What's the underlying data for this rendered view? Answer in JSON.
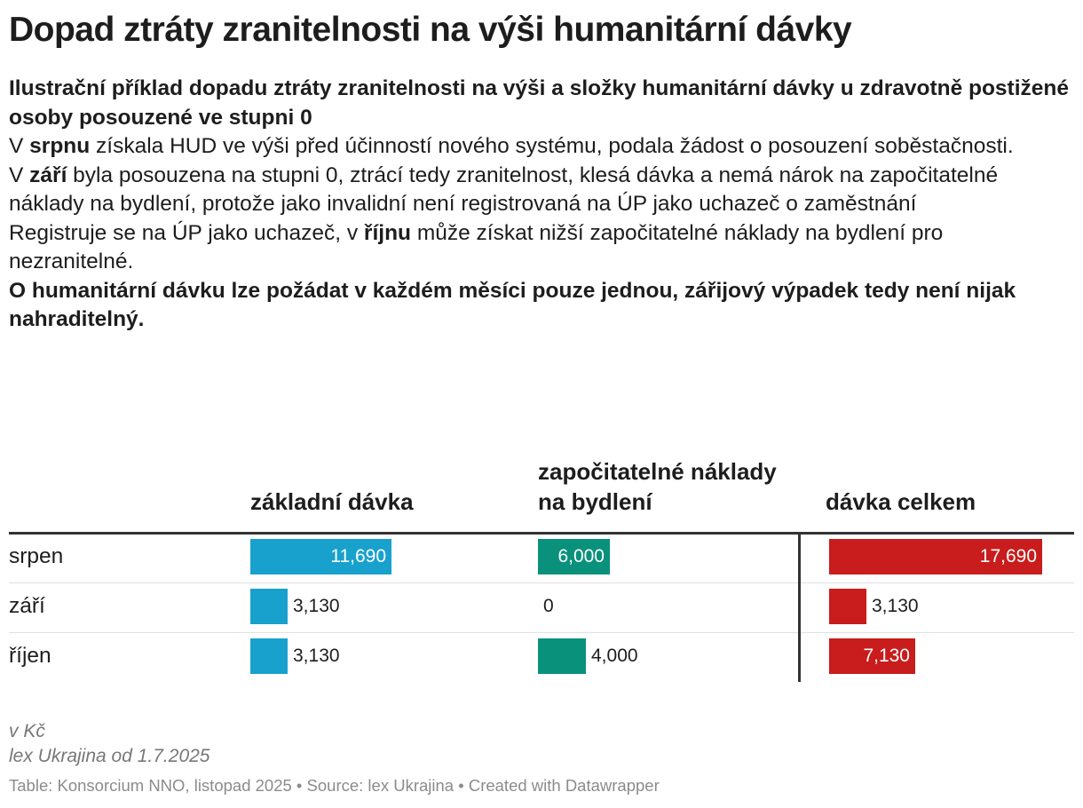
{
  "header": {
    "title": "Dopad ztráty zranitelnosti na výši humanitární dávky",
    "description": [
      [
        {
          "t": "Ilustrační příklad dopadu ztráty zranitelnosti na výši a složky humanitární dávky u zdravotně postižené osoby posouzené ve stupni 0",
          "b": true
        }
      ],
      [
        {
          "t": "V "
        },
        {
          "t": "srpnu",
          "b": true
        },
        {
          "t": " získala HUD ve výši před účinností nového systému, podala žádost o posouzení soběstačnosti."
        }
      ],
      [
        {
          "t": "V "
        },
        {
          "t": "září",
          "b": true
        },
        {
          "t": " byla posouzena na stupni 0, ztrácí tedy zranitelnost, klesá dávka a nemá nárok na započitatelné náklady na bydlení, protože jako invalidní není registrovaná na ÚP jako uchazeč o zaměstnání"
        }
      ],
      [
        {
          "t": "Registruje se na ÚP jako uchazeč, v "
        },
        {
          "t": "říjnu",
          "b": true
        },
        {
          "t": " může získat nižší započitatelné náklady na bydlení pro nezranitelné."
        }
      ],
      [
        {
          "t": "O humanitární dávku lze požádat v každém měsíci pouze jednou, zářijový výpadek tedy není nijak nahraditelný.",
          "b": true
        }
      ]
    ]
  },
  "chart_data": {
    "type": "table",
    "columns": [
      {
        "name": "základní dávka",
        "color": "#18a1cd",
        "max": 17690
      },
      {
        "name": "započitatelné náklady na bydlení",
        "color": "#09917c",
        "max": 17690
      },
      {
        "name": "dávka celkem",
        "color": "#c91c1c",
        "max": 17690
      }
    ],
    "rows": [
      {
        "label": "srpen",
        "values": [
          11690,
          6000,
          17690
        ],
        "display": [
          "11,690",
          "6,000",
          "17,690"
        ]
      },
      {
        "label": "září",
        "values": [
          3130,
          0,
          3130
        ],
        "display": [
          "3,130",
          "0",
          "3,130"
        ]
      },
      {
        "label": "říjen",
        "values": [
          3130,
          4000,
          7130
        ],
        "display": [
          "3,130",
          "4,000",
          "7,130"
        ]
      }
    ]
  },
  "footer": {
    "notes": [
      "v Kč",
      "lex Ukrajina od 1.7.2025"
    ],
    "source": "Table: Konsorcium NNO, listopad 2025 • Source: lex Ukrajina • Created with Datawrapper"
  }
}
